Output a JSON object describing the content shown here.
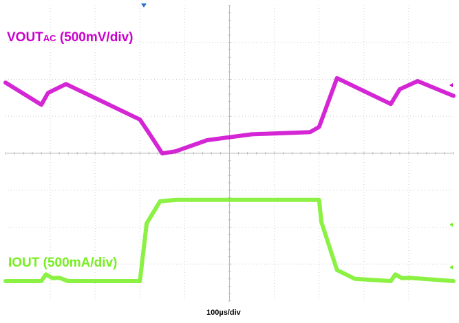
{
  "chart_data": {
    "type": "line",
    "title": "",
    "time_scale_label": "100µs/div",
    "grid": true,
    "x_unit": "µs",
    "xlim": [
      0,
      1000
    ],
    "series": [
      {
        "name": "VOUTAC (500mV/div)",
        "label_main": "VOUT",
        "label_sub": "AC",
        "label_scale": " (500mV/div)",
        "unit": "mV",
        "color": "#cc00cc",
        "x": [
          0,
          80,
          95,
          135,
          300,
          320,
          350,
          380,
          450,
          550,
          680,
          700,
          740,
          860,
          880,
          920,
          1000
        ],
        "y": [
          -20,
          -320,
          -160,
          -40,
          -520,
          -700,
          -980,
          -950,
          -800,
          -720,
          -690,
          -620,
          40,
          -310,
          -110,
          0,
          -200
        ]
      },
      {
        "name": "IOUT (500mA/div)",
        "label": "IOUT (500mA/div)",
        "unit": "mA",
        "color": "#77ee22",
        "x": [
          0,
          80,
          90,
          105,
          120,
          140,
          300,
          315,
          345,
          380,
          440,
          640,
          700,
          705,
          740,
          780,
          860,
          870,
          885,
          900,
          1000
        ],
        "y": [
          0,
          0,
          90,
          40,
          45,
          0,
          0,
          780,
          1080,
          1100,
          1100,
          1100,
          1100,
          800,
          150,
          30,
          0,
          90,
          40,
          45,
          0
        ]
      }
    ]
  }
}
